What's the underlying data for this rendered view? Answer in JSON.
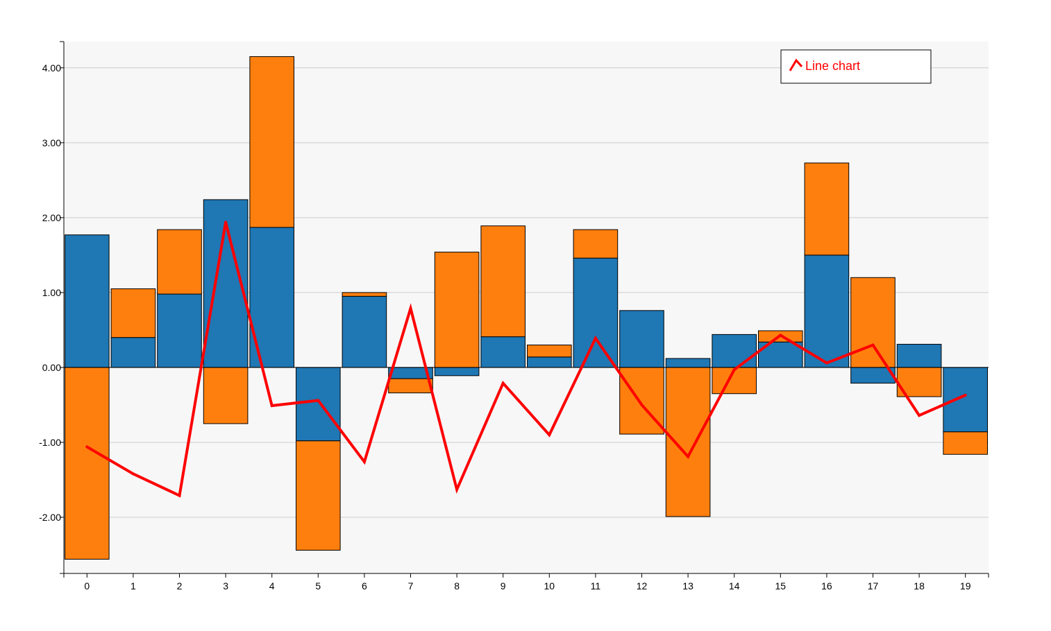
{
  "chart_data": {
    "type": "bar",
    "stacked": true,
    "categories": [
      "0",
      "1",
      "2",
      "3",
      "4",
      "5",
      "6",
      "7",
      "8",
      "9",
      "10",
      "11",
      "12",
      "13",
      "14",
      "15",
      "16",
      "17",
      "18",
      "19"
    ],
    "series": [
      {
        "values": [
          1.77,
          0.4,
          0.98,
          2.24,
          1.87,
          -0.98,
          0.95,
          -0.15,
          -0.11,
          0.41,
          0.14,
          1.46,
          0.76,
          0.12,
          0.44,
          0.34,
          1.5,
          -0.21,
          0.31,
          -0.86
        ]
      },
      {
        "values": [
          -2.56,
          0.65,
          0.86,
          -0.75,
          2.28,
          -1.46,
          0.05,
          -0.19,
          1.54,
          1.48,
          0.16,
          0.38,
          -0.89,
          -1.99,
          -0.35,
          0.15,
          1.23,
          1.2,
          -0.39,
          -0.3
        ]
      },
      {
        "name": "Line chart",
        "type": "line",
        "values": [
          -1.06,
          -1.42,
          -1.71,
          1.94,
          -0.51,
          -0.44,
          -1.26,
          0.79,
          -1.63,
          -0.21,
          -0.9,
          0.39,
          -0.5,
          -1.19,
          -0.03,
          0.43,
          0.06,
          0.3,
          -0.64,
          -0.37
        ]
      }
    ],
    "yticks": [
      "-2.00",
      "-1.00",
      "0.00",
      "1.00",
      "2.00",
      "3.00",
      "4.00"
    ],
    "ylim": [
      -2.75,
      4.35
    ],
    "grid": true,
    "legend_position": "top-right",
    "title": "",
    "xlabel": "",
    "ylabel": ""
  },
  "colors": {
    "series_0": "#1f77b4",
    "series_1": "#ff7f0e",
    "line": "#ff0000",
    "plot_background": "#f7f7f7",
    "grid": "#cccccc",
    "bar_stroke": "#000000"
  }
}
